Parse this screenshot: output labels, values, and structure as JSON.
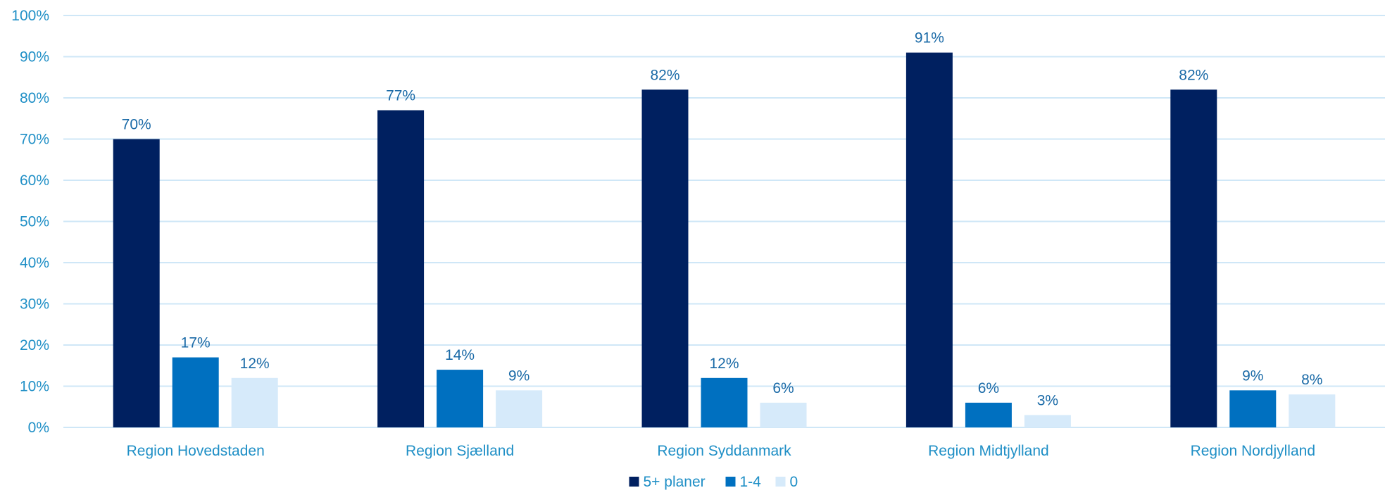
{
  "chart_data": {
    "type": "bar",
    "title": "",
    "xlabel": "",
    "ylabel": "",
    "categories": [
      "Region Hovedstaden",
      "Region Sjælland",
      "Region Syddanmark",
      "Region Midtjylland",
      "Region Nordjylland"
    ],
    "series": [
      {
        "name": "5+ planer",
        "color": "#002060",
        "values": [
          70,
          77,
          82,
          91,
          82
        ],
        "labels": [
          "70%",
          "77%",
          "82%",
          "91%",
          "82%"
        ]
      },
      {
        "name": "1-4",
        "color": "#0070c0",
        "values": [
          17,
          14,
          12,
          6,
          9
        ],
        "labels": [
          "17%",
          "14%",
          "12%",
          "6%",
          "9%"
        ]
      },
      {
        "name": "0",
        "color": "#d6eafa",
        "values": [
          12,
          9,
          6,
          3,
          8
        ],
        "labels": [
          "12%",
          "9%",
          "6%",
          "3%",
          "8%"
        ]
      }
    ],
    "ylim": [
      0,
      100
    ],
    "yticks": [
      "0%",
      "10%",
      "20%",
      "30%",
      "40%",
      "50%",
      "60%",
      "70%",
      "80%",
      "90%",
      "100%"
    ],
    "grid": true,
    "legend_position": "bottom"
  }
}
